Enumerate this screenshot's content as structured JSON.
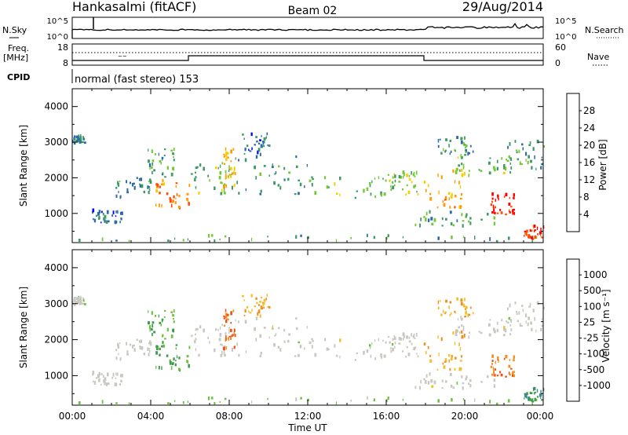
{
  "header": {
    "station": "Hankasalmi (fitACF)",
    "beam": "Beam 02",
    "date": "29/Aug/2014"
  },
  "noise_panel": {
    "left_label": "N.Sky",
    "left_ticks": [
      "10^5",
      "10^0"
    ],
    "right_label": "N.Search",
    "right_ticks": [
      "10^5",
      "10^0"
    ]
  },
  "freq_panel": {
    "label_top": "Freq.",
    "label_bottom": "[MHz]",
    "left_ticks": [
      "18",
      "8"
    ],
    "right_ticks": [
      "60",
      "0"
    ],
    "right_label": "Nave"
  },
  "cpid": {
    "label": "CPID",
    "text": "normal (fast stereo) 153"
  },
  "x_axis": {
    "ticks": [
      "00:00",
      "04:00",
      "08:00",
      "12:00",
      "16:00",
      "20:00",
      "00:00"
    ],
    "label": "Time UT"
  },
  "power_panel": {
    "y_label": "Slant Range [km]",
    "y_ticks": [
      "1000",
      "2000",
      "3000",
      "4000"
    ],
    "colorbar_label": "Power [dB]",
    "colorbar_ticks": [
      "28",
      "24",
      "20",
      "16",
      "12",
      "8",
      "4"
    ],
    "colors": [
      "#ff0000",
      "#ff4a00",
      "#ff9a00",
      "#f7cc00",
      "#74c836",
      "#3c9a66",
      "#2a6aa8",
      "#0000ff"
    ]
  },
  "velocity_panel": {
    "y_label": "Slant Range [km]",
    "y_ticks": [
      "1000",
      "2000",
      "3000",
      "4000"
    ],
    "colorbar_label": "Velocity [m s⁻¹]",
    "colorbar_ticks": [
      "1000",
      "500",
      "100",
      "25",
      "-25",
      "-100",
      "-500",
      "-1000"
    ],
    "colors": [
      "#2a50b4",
      "#3a8a8a",
      "#3c9a4a",
      "#70c040",
      "#c8c8c0",
      "#f0c030",
      "#f09020",
      "#f05010",
      "#ff0000"
    ],
    "ground_scatter_color": "#c8c8c0"
  },
  "chart_data": {
    "type": "heatmap",
    "title": "Hankasalmi (fitACF) Beam 02 29/Aug/2014",
    "xlabel": "Time UT",
    "ylabel": "Slant Range [km]",
    "xlim": [
      0,
      24
    ],
    "ylim": [
      180,
      4500
    ],
    "power_colorbar_range_db": [
      0,
      30
    ],
    "velocity_colorbar_range": [
      -1000,
      1000
    ],
    "regions": [
      {
        "t0": 0.0,
        "t1": 0.6,
        "r0": 2900,
        "r1": 3150,
        "power_db": 8,
        "velocity": 25
      },
      {
        "t0": 0.0,
        "t1": 24.0,
        "r0": 180,
        "r1": 350,
        "power_db": 10,
        "velocity": 50
      },
      {
        "t0": 1.0,
        "t1": 2.6,
        "r0": 700,
        "r1": 1050,
        "power_db": 6,
        "velocity": 0
      },
      {
        "t0": 2.2,
        "t1": 4.0,
        "r0": 1400,
        "r1": 2000,
        "power_db": 8,
        "velocity": 0
      },
      {
        "t0": 4.2,
        "t1": 6.0,
        "r0": 1100,
        "r1": 1900,
        "power_db": 22,
        "velocity": 100
      },
      {
        "t0": 3.8,
        "t1": 5.2,
        "r0": 2000,
        "r1": 2800,
        "power_db": 10,
        "velocity": 100
      },
      {
        "t0": 6.0,
        "t1": 8.2,
        "r0": 1500,
        "r1": 2400,
        "power_db": 12,
        "velocity": 0
      },
      {
        "t0": 7.6,
        "t1": 8.3,
        "r0": 1700,
        "r1": 2800,
        "power_db": 18,
        "velocity": -500
      },
      {
        "t0": 8.3,
        "t1": 12.0,
        "r0": 1500,
        "r1": 2600,
        "power_db": 8,
        "velocity": 0
      },
      {
        "t0": 8.6,
        "t1": 10.2,
        "r0": 2600,
        "r1": 3200,
        "power_db": 6,
        "velocity": -100
      },
      {
        "t0": 12.0,
        "t1": 16.5,
        "r0": 1400,
        "r1": 2000,
        "power_db": 12,
        "velocity": 0
      },
      {
        "t0": 16.0,
        "t1": 17.6,
        "r0": 1500,
        "r1": 2100,
        "power_db": 14,
        "velocity": 0
      },
      {
        "t0": 17.8,
        "t1": 20.0,
        "r0": 1100,
        "r1": 2200,
        "power_db": 20,
        "velocity": -100
      },
      {
        "t0": 17.4,
        "t1": 21.6,
        "r0": 600,
        "r1": 1000,
        "power_db": 10,
        "velocity": 0
      },
      {
        "t0": 18.6,
        "t1": 20.4,
        "r0": 2600,
        "r1": 3100,
        "power_db": 8,
        "velocity": -100
      },
      {
        "t0": 19.4,
        "t1": 22.5,
        "r0": 2000,
        "r1": 2600,
        "power_db": 12,
        "velocity": 0
      },
      {
        "t0": 21.3,
        "t1": 22.5,
        "r0": 900,
        "r1": 1500,
        "power_db": 28,
        "velocity": -500
      },
      {
        "t0": 22.0,
        "t1": 24.0,
        "r0": 2200,
        "r1": 3000,
        "power_db": 10,
        "velocity": 0
      },
      {
        "t0": 23.0,
        "t1": 24.0,
        "r0": 250,
        "r1": 600,
        "power_db": 26,
        "velocity": 500
      }
    ]
  }
}
